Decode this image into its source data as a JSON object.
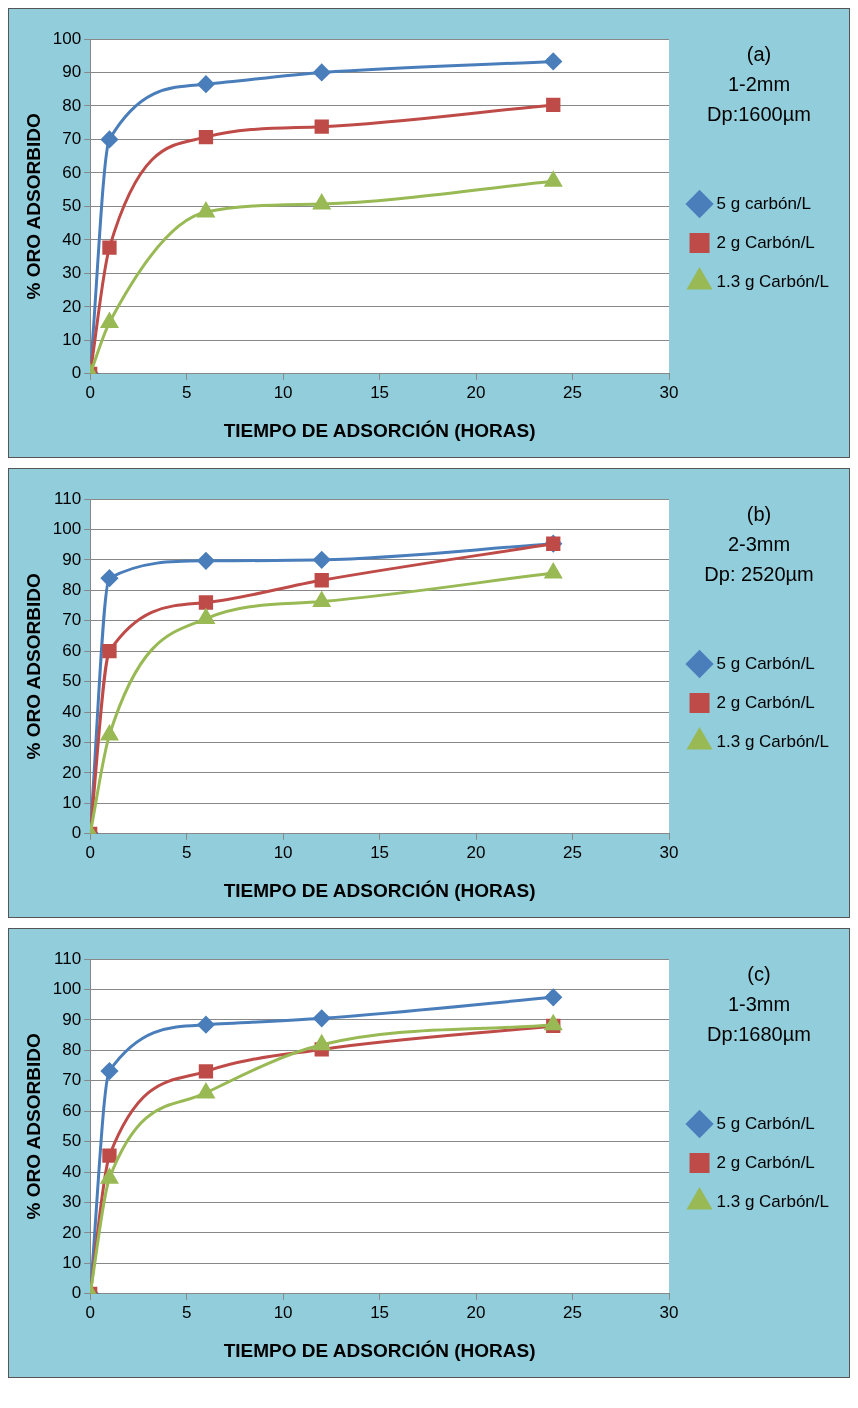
{
  "chart_data": [
    {
      "type": "line",
      "xlabel": "TIEMPO DE ADSORCIÓN (HORAS)",
      "ylabel": "% ORO ADSORBIDO",
      "annotations": [
        "(a)",
        "1-2mm",
        "Dp:1600µm"
      ],
      "xlim": [
        0,
        30
      ],
      "xticks": [
        0,
        5,
        10,
        15,
        20,
        25,
        30
      ],
      "ylim": [
        0,
        100
      ],
      "yticks": [
        0,
        10,
        20,
        30,
        40,
        50,
        60,
        70,
        80,
        90,
        100
      ],
      "grid": "y",
      "legend": "right",
      "x": [
        0,
        1,
        6,
        12,
        24
      ],
      "series": [
        {
          "name": "5 g carbón/L",
          "color": "#4a7ebb",
          "marker": "diamond",
          "values": [
            0,
            70,
            86.5,
            90,
            93.3
          ]
        },
        {
          "name": "2 g Carbón/L",
          "color": "#be4b48",
          "marker": "square",
          "values": [
            0,
            37.7,
            70.7,
            73.8,
            80.3
          ]
        },
        {
          "name": "1.3 g Carbón/L",
          "color": "#98b954",
          "marker": "triangle",
          "values": [
            0,
            15.3,
            48.3,
            50.7,
            57.5
          ]
        }
      ]
    },
    {
      "type": "line",
      "xlabel": "TIEMPO DE ADSORCIÓN (HORAS)",
      "ylabel": "% ORO ADSORBIDO",
      "annotations": [
        "(b)",
        "2-3mm",
        "Dp: 2520µm"
      ],
      "xlim": [
        0,
        30
      ],
      "xticks": [
        0,
        5,
        10,
        15,
        20,
        25,
        30
      ],
      "ylim": [
        0,
        110
      ],
      "yticks": [
        0,
        10,
        20,
        30,
        40,
        50,
        60,
        70,
        80,
        90,
        100,
        110
      ],
      "grid": "y",
      "legend": "right",
      "x": [
        0,
        1,
        6,
        12,
        24
      ],
      "series": [
        {
          "name": "5 g Carbón/L",
          "color": "#4a7ebb",
          "marker": "diamond",
          "values": [
            0,
            84,
            89.7,
            90,
            95.3
          ]
        },
        {
          "name": "2 g Carbón/L",
          "color": "#be4b48",
          "marker": "square",
          "values": [
            0,
            60,
            76,
            83.3,
            95.3
          ]
        },
        {
          "name": "1.3 g Carbón/L",
          "color": "#98b954",
          "marker": "triangle",
          "values": [
            0,
            32.5,
            70.7,
            76.3,
            85.7
          ]
        }
      ]
    },
    {
      "type": "line",
      "xlabel": "TIEMPO DE ADSORCIÓN (HORAS)",
      "ylabel": "% ORO ADSORBIDO",
      "annotations": [
        "(c)",
        "1-3mm",
        "Dp:1680µm"
      ],
      "xlim": [
        0,
        30
      ],
      "xticks": [
        0,
        5,
        10,
        15,
        20,
        25,
        30
      ],
      "ylim": [
        0,
        110
      ],
      "yticks": [
        0,
        10,
        20,
        30,
        40,
        50,
        60,
        70,
        80,
        90,
        100,
        110
      ],
      "grid": "y",
      "legend": "right",
      "x": [
        0,
        1,
        6,
        12,
        24
      ],
      "series": [
        {
          "name": "5 g Carbón/L",
          "color": "#4a7ebb",
          "marker": "diamond",
          "values": [
            0,
            73.2,
            88.4,
            90.5,
            97.4
          ]
        },
        {
          "name": "2 g Carbón/L",
          "color": "#be4b48",
          "marker": "square",
          "values": [
            0,
            45.4,
            73.1,
            80.3,
            88
          ]
        },
        {
          "name": "1.3 g Carbón/L",
          "color": "#98b954",
          "marker": "triangle",
          "values": [
            0,
            38,
            66,
            81.8,
            88.4
          ]
        }
      ]
    }
  ]
}
